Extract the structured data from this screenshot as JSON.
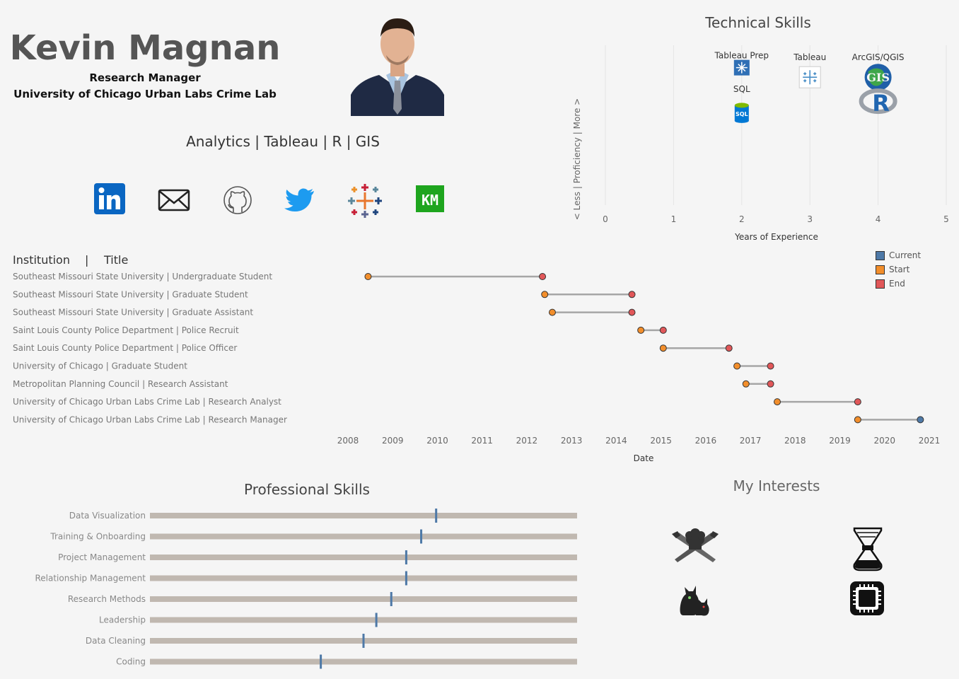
{
  "header": {
    "name": "Kevin Magnan",
    "role": "Research Manager",
    "organization": "University of Chicago Urban Labs Crime Lab",
    "tagline": "Analytics | Tableau | R | GIS"
  },
  "social_links": [
    {
      "name": "linkedin",
      "icon": "linkedin-icon",
      "glyph": "in",
      "color": "#0a66c2"
    },
    {
      "name": "email",
      "icon": "envelope-icon",
      "color": "#222222"
    },
    {
      "name": "github",
      "icon": "github-icon",
      "color": "#444444"
    },
    {
      "name": "twitter",
      "icon": "twitter-bird-icon",
      "color": "#1da1f2"
    },
    {
      "name": "tableau-public",
      "icon": "tableau-logo-icon"
    },
    {
      "name": "personal-site",
      "icon": "km-logo-icon",
      "glyph": "KM",
      "color": "#1a9e1a"
    }
  ],
  "technical_skills": {
    "title": "Technical Skills",
    "x_label": "Years of Experience",
    "y_label": "<  Less   |   Proficiency   |   More  >",
    "chart_data": {
      "type": "scatter",
      "xlim": [
        0,
        5
      ],
      "x_ticks": [
        0,
        1,
        2,
        3,
        4,
        5
      ],
      "points": [
        {
          "label": "Tableau Prep",
          "x": 2,
          "y": 8.6,
          "icon": "tableau-prep-icon"
        },
        {
          "label": "Tableau",
          "x": 3,
          "y": 8.0,
          "icon": "tableau-icon"
        },
        {
          "label": "ArcGIS/QGIS",
          "x": 4,
          "y": 8.0,
          "icon": "gis-globe-icon"
        },
        {
          "label": "",
          "x": 4,
          "y": 6.5,
          "icon": "r-logo-icon"
        },
        {
          "label": "SQL",
          "x": 2,
          "y": 5.8,
          "icon": "sql-database-icon"
        }
      ]
    }
  },
  "timeline": {
    "header_institution": "Institution",
    "header_sep": "|",
    "header_title": "Title",
    "x_label": "Date",
    "legend": [
      {
        "label": "Current",
        "color": "#4e79a7"
      },
      {
        "label": "Start",
        "color": "#f28e2b"
      },
      {
        "label": "End",
        "color": "#e15759"
      }
    ],
    "chart_data": {
      "type": "dumbbell",
      "x_ticks": [
        "2008",
        "2009",
        "2010",
        "2011",
        "2012",
        "2013",
        "2014",
        "2015",
        "2016",
        "2017",
        "2018",
        "2019",
        "2020",
        "2021"
      ],
      "rows": [
        {
          "label": "Southeast Missouri State University | Undergraduate Student",
          "start": 2008.45,
          "end": 2012.35,
          "end_type": "End"
        },
        {
          "label": "Southeast Missouri State University | Graduate Student",
          "start": 2012.4,
          "end": 2014.35,
          "end_type": "End"
        },
        {
          "label": "Southeast Missouri State University | Graduate Assistant",
          "start": 2012.57,
          "end": 2014.35,
          "end_type": "End"
        },
        {
          "label": "Saint Louis County Police Department | Police Recruit",
          "start": 2014.55,
          "end": 2015.05,
          "end_type": "End"
        },
        {
          "label": "Saint Louis County Police Department | Police Officer",
          "start": 2015.05,
          "end": 2016.52,
          "end_type": "End"
        },
        {
          "label": "University of Chicago | Graduate Student",
          "start": 2016.7,
          "end": 2017.45,
          "end_type": "End"
        },
        {
          "label": "Metropolitan Planning Council | Research Assistant",
          "start": 2016.9,
          "end": 2017.45,
          "end_type": "End"
        },
        {
          "label": "University of Chicago Urban Labs Crime Lab | Research Analyst",
          "start": 2017.6,
          "end": 2019.4,
          "end_type": "End"
        },
        {
          "label": "University of Chicago Urban Labs Crime Lab | Research Manager",
          "start": 2019.4,
          "end": 2020.8,
          "end_type": "Current"
        }
      ]
    }
  },
  "professional_skills": {
    "title": "Professional Skills",
    "chart_data": {
      "type": "bullet",
      "max": 10,
      "items": [
        {
          "label": "Data Visualization",
          "value": 6.7
        },
        {
          "label": "Training & Onboarding",
          "value": 6.35
        },
        {
          "label": "Project Management",
          "value": 6.0
        },
        {
          "label": "Relationship Management",
          "value": 6.0
        },
        {
          "label": "Research Methods",
          "value": 5.65
        },
        {
          "label": "Leadership",
          "value": 5.3
        },
        {
          "label": "Data Cleaning",
          "value": 5.0
        },
        {
          "label": "Coding",
          "value": 4.0
        }
      ]
    }
  },
  "interests": {
    "title": "My Interests",
    "items": [
      {
        "name": "cooking",
        "icon": "chef-knives-icon"
      },
      {
        "name": "coffee",
        "icon": "chemex-icon"
      },
      {
        "name": "cats",
        "icon": "cats-icon"
      },
      {
        "name": "computers",
        "icon": "chip-icon"
      }
    ]
  },
  "colors": {
    "start": "#f28e2b",
    "end": "#e15759",
    "current": "#4e79a7",
    "track": "#c0b8b0",
    "marker": "#4e79a7"
  }
}
